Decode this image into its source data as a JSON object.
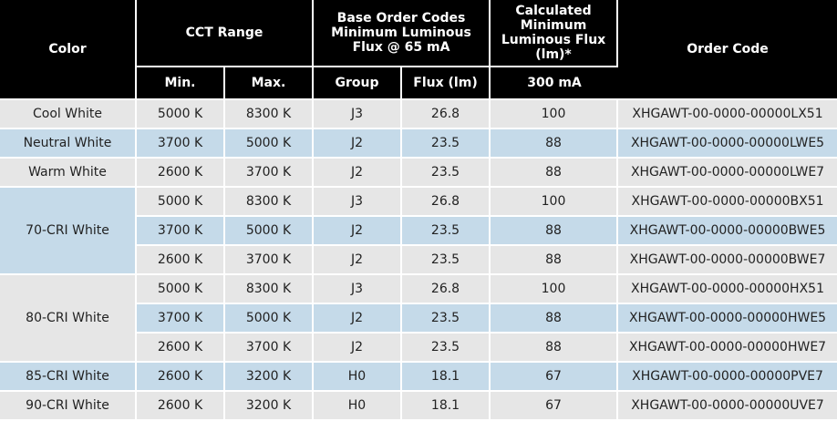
{
  "headers": {
    "color": "Color",
    "cct_range": "CCT Range",
    "base_codes": "Base Order Codes Minimum Luminous Flux  @ 65 mA",
    "calculated": "Calculated Minimum Luminous Flux (lm)*",
    "order_code": "Order Code",
    "min": "Min.",
    "max": "Max.",
    "group": "Group",
    "flux": "Flux (lm)",
    "ma300": "300 mA"
  },
  "rows": [
    {
      "color": "Cool White",
      "min": "5000 K",
      "max": "8300 K",
      "group": "J3",
      "flux": "26.8",
      "calc": "100",
      "code": "XHGAWT-00-0000-00000LX51"
    },
    {
      "color": "Neutral White",
      "min": "3700 K",
      "max": "5000 K",
      "group": "J2",
      "flux": "23.5",
      "calc": "88",
      "code": "XHGAWT-00-0000-00000LWE5"
    },
    {
      "color": "Warm White",
      "min": "2600 K",
      "max": "3700 K",
      "group": "J2",
      "flux": "23.5",
      "calc": "88",
      "code": "XHGAWT-00-0000-00000LWE7"
    },
    {
      "color": "70-CRI White",
      "min": "5000 K",
      "max": "8300 K",
      "group": "J3",
      "flux": "26.8",
      "calc": "100",
      "code": "XHGAWT-00-0000-00000BX51"
    },
    {
      "color": "",
      "min": "3700 K",
      "max": "5000 K",
      "group": "J2",
      "flux": "23.5",
      "calc": "88",
      "code": "XHGAWT-00-0000-00000BWE5"
    },
    {
      "color": "",
      "min": "2600 K",
      "max": "3700 K",
      "group": "J2",
      "flux": "23.5",
      "calc": "88",
      "code": "XHGAWT-00-0000-00000BWE7"
    },
    {
      "color": "80-CRI White",
      "min": "5000 K",
      "max": "8300 K",
      "group": "J3",
      "flux": "26.8",
      "calc": "100",
      "code": "XHGAWT-00-0000-00000HX51"
    },
    {
      "color": "",
      "min": "3700 K",
      "max": "5000 K",
      "group": "J2",
      "flux": "23.5",
      "calc": "88",
      "code": "XHGAWT-00-0000-00000HWE5"
    },
    {
      "color": "",
      "min": "2600 K",
      "max": "3700 K",
      "group": "J2",
      "flux": "23.5",
      "calc": "88",
      "code": "XHGAWT-00-0000-00000HWE7"
    },
    {
      "color": "85-CRI White",
      "min": "2600 K",
      "max": "3200 K",
      "group": "H0",
      "flux": "18.1",
      "calc": "67",
      "code": "XHGAWT-00-0000-00000PVE7"
    },
    {
      "color": "90-CRI White",
      "min": "2600 K",
      "max": "3200 K",
      "group": "H0",
      "flux": "18.1",
      "calc": "67",
      "code": "XHGAWT-00-0000-00000UVE7"
    }
  ],
  "colors": {
    "header_bg": "#000000",
    "header_text": "#ffffff",
    "row_gray": "#e6e6e6",
    "row_blue": "#c5dae9",
    "grid_line": "#ffffff"
  }
}
